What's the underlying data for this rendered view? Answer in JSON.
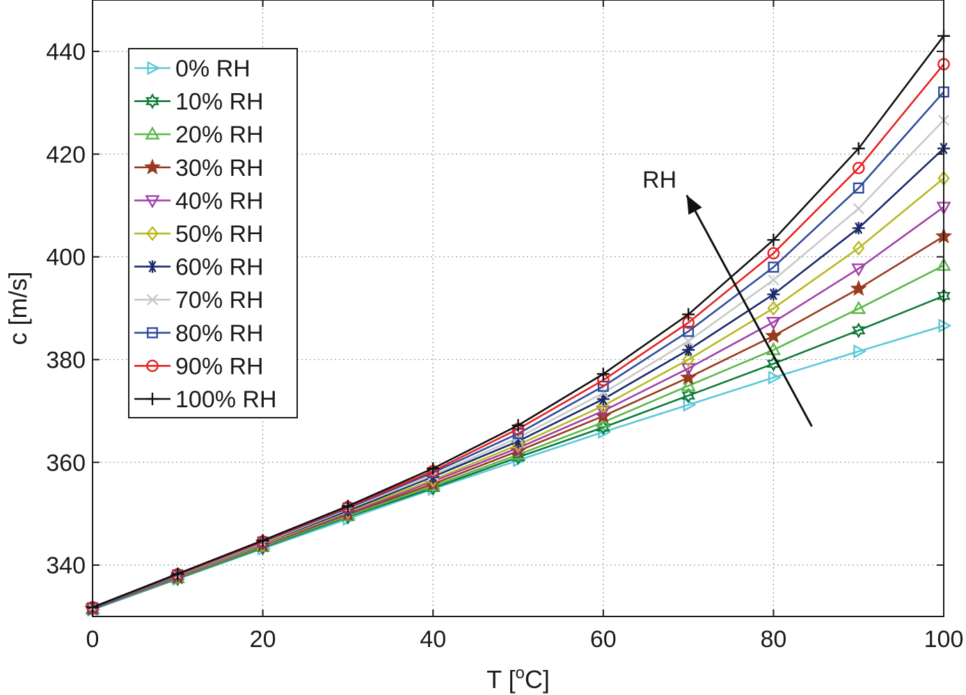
{
  "chart_data": {
    "type": "line",
    "title": "",
    "xlabel_main": "T [",
    "xlabel_sup": "o",
    "xlabel_tail": "C]",
    "ylabel": "c [m/s]",
    "xlim": [
      0,
      100
    ],
    "ylim": [
      330,
      450
    ],
    "xticks": [
      0,
      20,
      40,
      60,
      80,
      100
    ],
    "yticks": [
      340,
      360,
      380,
      400,
      420,
      440
    ],
    "grid": true,
    "legend_position": "top-left",
    "x": [
      0,
      10,
      20,
      30,
      40,
      50,
      60,
      70,
      80,
      90,
      100
    ],
    "series": [
      {
        "name": "0% RH",
        "color": "#5bc8d8",
        "marker": "triangle-right",
        "values": [
          331.3,
          337.3,
          343.2,
          349.0,
          354.8,
          360.4,
          365.9,
          371.2,
          376.5,
          381.6,
          386.6
        ]
      },
      {
        "name": "10% RH",
        "color": "#0e7a3a",
        "marker": "hexagram",
        "values": [
          331.4,
          337.4,
          343.4,
          349.4,
          355.0,
          361.0,
          366.8,
          373.0,
          379.2,
          385.7,
          392.4
        ]
      },
      {
        "name": "20% RH",
        "color": "#5ab84a",
        "marker": "triangle-up",
        "values": [
          331.4,
          337.5,
          343.6,
          349.6,
          355.4,
          361.5,
          367.8,
          374.9,
          381.9,
          389.9,
          398.3
        ]
      },
      {
        "name": "30% RH",
        "color": "#9a3a1e",
        "marker": "pentagram",
        "values": [
          331.5,
          337.6,
          343.8,
          349.9,
          355.8,
          362.2,
          369.0,
          376.5,
          384.6,
          393.8,
          404.0
        ]
      },
      {
        "name": "40% RH",
        "color": "#a040a8",
        "marker": "triangle-down",
        "values": [
          331.5,
          337.7,
          343.9,
          350.1,
          356.3,
          362.8,
          370.0,
          378.3,
          387.3,
          397.7,
          409.7
        ]
      },
      {
        "name": "50% RH",
        "color": "#b8b820",
        "marker": "diamond",
        "values": [
          331.6,
          337.8,
          344.0,
          350.4,
          356.6,
          363.4,
          371.0,
          380.0,
          390.0,
          401.7,
          415.3
        ]
      },
      {
        "name": "60% RH",
        "color": "#1a2a6a",
        "marker": "asterisk",
        "values": [
          331.6,
          337.9,
          344.2,
          350.6,
          357.2,
          364.1,
          372.3,
          381.9,
          392.7,
          405.6,
          421.1
        ]
      },
      {
        "name": "70% RH",
        "color": "#c8c8c8",
        "marker": "x",
        "values": [
          331.7,
          338.0,
          344.3,
          350.9,
          357.5,
          364.8,
          373.5,
          383.6,
          395.5,
          409.4,
          426.6
        ]
      },
      {
        "name": "80% RH",
        "color": "#2e4c9c",
        "marker": "square",
        "values": [
          331.7,
          338.1,
          344.5,
          351.1,
          358.0,
          365.6,
          374.8,
          385.5,
          398.0,
          413.4,
          432.1
        ]
      },
      {
        "name": "90% RH",
        "color": "#e82020",
        "marker": "circle",
        "values": [
          331.8,
          338.2,
          344.6,
          351.3,
          358.3,
          366.5,
          376.0,
          387.2,
          400.7,
          417.3,
          437.5
        ]
      },
      {
        "name": "100% RH",
        "color": "#101010",
        "marker": "plus",
        "values": [
          331.8,
          338.3,
          344.8,
          351.5,
          358.8,
          367.2,
          377.2,
          388.8,
          403.3,
          421.1,
          443.0
        ]
      }
    ],
    "annotation": {
      "text": "RH",
      "arrow_from": [
        84.5,
        367
      ],
      "arrow_to": [
        69.8,
        412
      ],
      "text_at": [
        64.6,
        413.5
      ]
    }
  }
}
